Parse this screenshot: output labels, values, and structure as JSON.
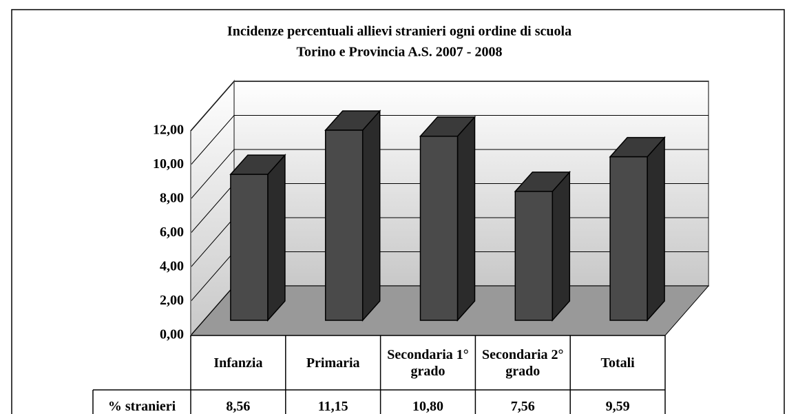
{
  "chart_data": {
    "type": "bar3d",
    "title": "Incidenze percentuali allievi stranieri ogni ordine di scuola",
    "subtitle": "Torino e Provincia A.S. 2007 - 2008",
    "categories": [
      "Infanzia",
      "Primaria",
      "Secondaria 1° grado",
      "Secondaria 2° grado",
      "Totali"
    ],
    "series": [
      {
        "name": "% stranieri",
        "color": "#4a4a4a",
        "values": [
          8.56,
          11.15,
          10.8,
          7.56,
          9.59
        ],
        "value_labels": [
          "8,56",
          "11,15",
          "10,80",
          "7,56",
          "9,59"
        ]
      }
    ],
    "ylim": [
      0,
      12
    ],
    "yticks": [
      {
        "value": 0,
        "label": "0,00"
      },
      {
        "value": 2,
        "label": "2,00"
      },
      {
        "value": 4,
        "label": "4,00"
      },
      {
        "value": 6,
        "label": "6,00"
      },
      {
        "value": 8,
        "label": "8,00"
      },
      {
        "value": 10,
        "label": "10,00"
      },
      {
        "value": 12,
        "label": "12,00"
      }
    ],
    "grid": true
  }
}
